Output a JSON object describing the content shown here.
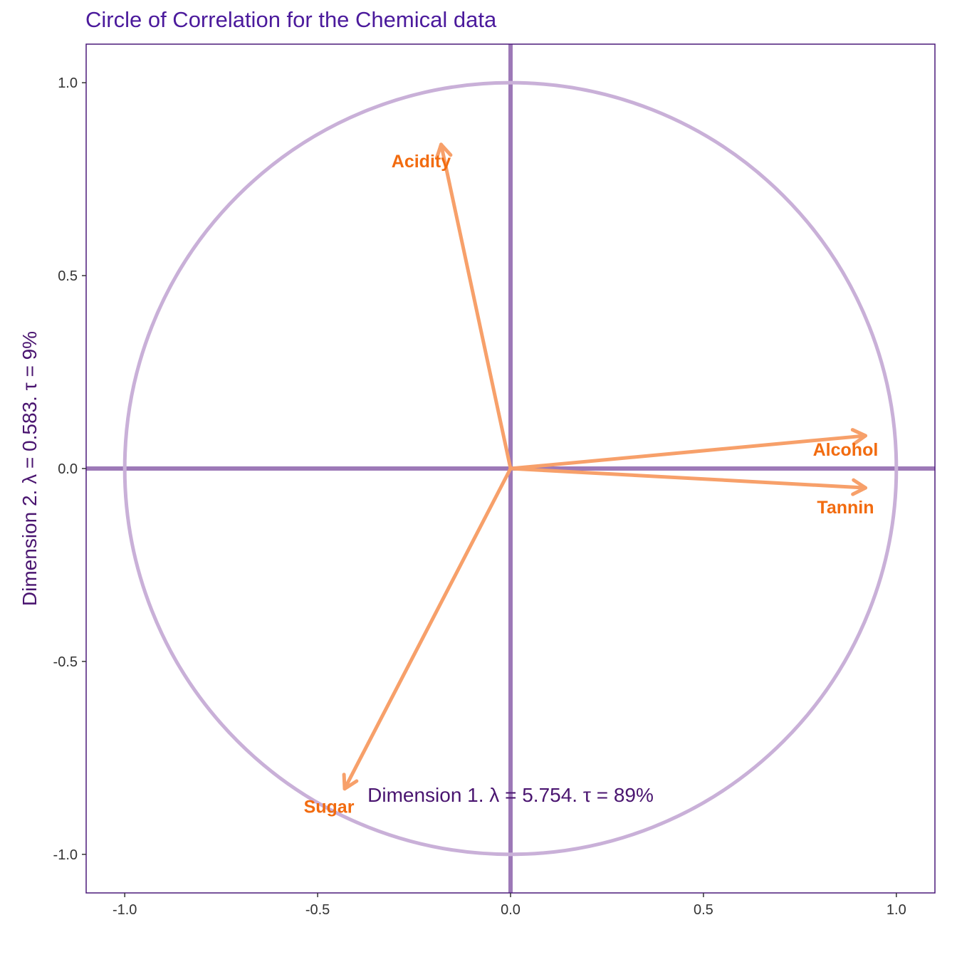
{
  "chart_data": {
    "type": "scatter",
    "title": "Circle of Correlation for the Chemical data",
    "xlabel": "Dimension 1.   λ = 5.754.  τ = 89%",
    "ylabel": "Dimension 2.   λ = 0.583.  τ = 9%",
    "xlim": [
      -1.1,
      1.1
    ],
    "ylim": [
      -1.1,
      1.1
    ],
    "x_ticks": [
      -1.0,
      -0.5,
      0.0,
      0.5,
      1.0
    ],
    "y_ticks": [
      -1.0,
      -0.5,
      0.0,
      0.5,
      1.0
    ],
    "x_tick_labels": [
      "-1.0",
      "-0.5",
      "0.0",
      "0.5",
      "1.0"
    ],
    "y_tick_labels": [
      "-1.0",
      "-0.5",
      "0.0",
      "0.5",
      "1.0"
    ],
    "grid": true,
    "circle_radius": 1.0,
    "variables": [
      {
        "name": "Acidity",
        "x": -0.18,
        "y": 0.84
      },
      {
        "name": "Alcohol",
        "x": 0.92,
        "y": 0.085
      },
      {
        "name": "Tannin",
        "x": 0.92,
        "y": -0.05
      },
      {
        "name": "Sugar",
        "x": -0.43,
        "y": -0.83
      }
    ],
    "colors": {
      "title": "#4b1a9c",
      "frame": "#4b1a7a",
      "axes": "#9d79b7",
      "circle": "#c9b0d8",
      "arrow": "#f7a06a",
      "label": "#f26b0f"
    }
  }
}
